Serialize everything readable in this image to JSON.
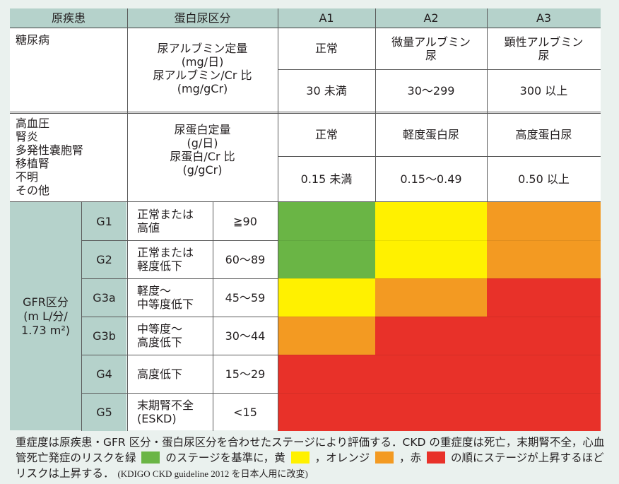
{
  "header": {
    "disease": "原疾患",
    "proteinuria_class": "蛋白尿区分",
    "a1": "A1",
    "a2": "A2",
    "a3": "A3"
  },
  "diabetes": {
    "disease": "糖尿病",
    "measure_lines": [
      "尿アルブミン定量",
      "(mg/日)",
      "尿アルブミン/Cr 比",
      "(mg/gCr)"
    ],
    "a1_label": "正常",
    "a2_label_lines": [
      "微量アルブミン",
      "尿"
    ],
    "a3_label_lines": [
      "顕性アルブミン",
      "尿"
    ],
    "a1_value": "30 未満",
    "a2_value": "30〜299",
    "a3_value": "300 以上"
  },
  "other": {
    "disease_lines": [
      "高血圧",
      "腎炎",
      "多発性嚢胞腎",
      "移植腎",
      "不明",
      "その他"
    ],
    "measure_lines": [
      "尿蛋白定量",
      "(g/日)",
      "尿蛋白/Cr 比",
      "(g/gCr)"
    ],
    "a1_label": "正常",
    "a2_label": "軽度蛋白尿",
    "a3_label": "高度蛋白尿",
    "a1_value": "0.15 未満",
    "a2_value": "0.15〜0.49",
    "a3_value": "0.50 以上"
  },
  "gfr": {
    "title_lines": [
      "GFR区分",
      "(m L/分/",
      "1.73 m²)"
    ],
    "rows": [
      {
        "stage": "G1",
        "desc_lines": [
          "正常または",
          "高値"
        ],
        "range": "≧90",
        "colors": [
          "green",
          "yellow",
          "orange"
        ]
      },
      {
        "stage": "G2",
        "desc_lines": [
          "正常または",
          "軽度低下"
        ],
        "range": "60〜89",
        "colors": [
          "green",
          "yellow",
          "orange"
        ]
      },
      {
        "stage": "G3a",
        "desc_lines": [
          "軽度〜",
          "中等度低下"
        ],
        "range": "45〜59",
        "colors": [
          "yellow",
          "orange",
          "red"
        ]
      },
      {
        "stage": "G3b",
        "desc_lines": [
          "中等度〜",
          "高度低下"
        ],
        "range": "30〜44",
        "colors": [
          "orange",
          "red",
          "red"
        ]
      },
      {
        "stage": "G4",
        "desc_lines": [
          "高度低下"
        ],
        "range": "15〜29",
        "colors": [
          "red",
          "red",
          "red"
        ]
      },
      {
        "stage": "G5",
        "desc_lines": [
          "末期腎不全",
          "(ESKD)"
        ],
        "range": "<15",
        "colors": [
          "red",
          "red",
          "red"
        ]
      }
    ]
  },
  "colors": {
    "green": "#6ab545",
    "yellow": "#fff100",
    "orange": "#f39a22",
    "red": "#e83129",
    "teal": "#b5d2cb"
  },
  "caption": {
    "part1": "重症度は原疾患・GFR 区分・蛋白尿区分を合わせたステージにより評価する．CKD の重症度は死亡，末期腎不全，心血管死亡発症のリスクを緑",
    "part2": "のステージを基準に，黄",
    "part3": "，オレンジ",
    "part4": "，赤",
    "part5": "の順にステージが上昇するほどリスクは上昇する．",
    "ref": "(KDIGO CKD guideline 2012 を日本人用に改変)"
  }
}
